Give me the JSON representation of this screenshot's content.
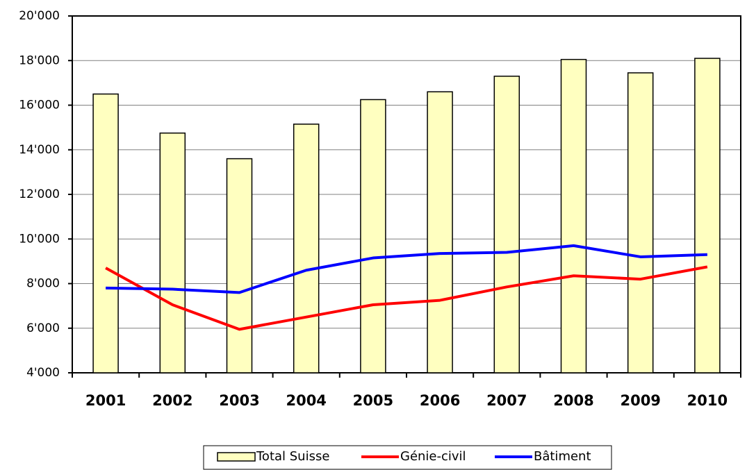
{
  "chart_data": {
    "type": "bar",
    "categories": [
      "2001",
      "2002",
      "2003",
      "2004",
      "2005",
      "2006",
      "2007",
      "2008",
      "2009",
      "2010"
    ],
    "series": [
      {
        "name": "Total Suisse",
        "type": "bar",
        "color": "#ffffc0",
        "values": [
          16500,
          14750,
          13600,
          15150,
          16250,
          16600,
          17300,
          18050,
          17450,
          18100
        ]
      },
      {
        "name": "Génie-civil",
        "type": "line",
        "color": "#ff0000",
        "values": [
          8700,
          7050,
          5950,
          6500,
          7050,
          7250,
          7850,
          8350,
          8200,
          8750
        ]
      },
      {
        "name": "Bâtiment",
        "type": "line",
        "color": "#0000ff",
        "values": [
          7800,
          7750,
          7600,
          8600,
          9150,
          9350,
          9400,
          9700,
          9200,
          9300
        ]
      }
    ],
    "ylim": [
      4000,
      20000
    ],
    "yticks": [
      {
        "value": 4000,
        "label": "4'000"
      },
      {
        "value": 6000,
        "label": "6'000"
      },
      {
        "value": 8000,
        "label": "8'000"
      },
      {
        "value": 10000,
        "label": "10'000"
      },
      {
        "value": 12000,
        "label": "12'000"
      },
      {
        "value": 14000,
        "label": "14'000"
      },
      {
        "value": 16000,
        "label": "16'000"
      },
      {
        "value": 18000,
        "label": "18'000"
      },
      {
        "value": 20000,
        "label": "20'000"
      }
    ],
    "grid": true,
    "legend": "bottom"
  }
}
